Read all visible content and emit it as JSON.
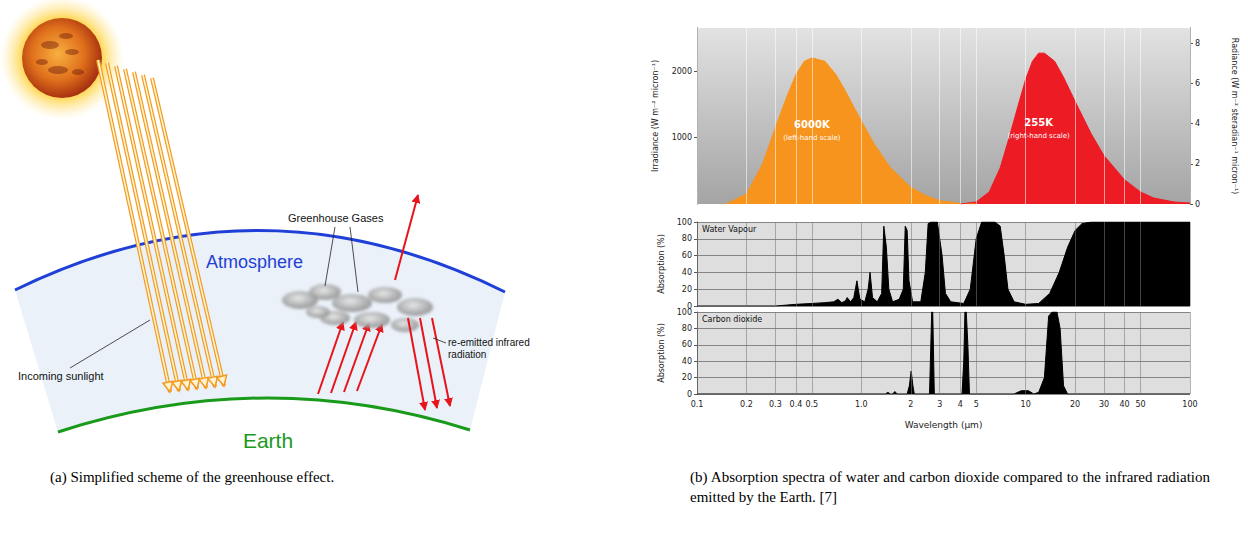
{
  "figure": {
    "panel_a": {
      "caption": "(a) Simplified scheme of the greenhouse effect.",
      "labels": {
        "greenhouse_gases": "Greenhouse Gases",
        "atmosphere": "Atmosphere",
        "incoming": "Incoming sunlight",
        "reemitted": "re-emitted infrared radiation",
        "earth": "Earth"
      }
    },
    "panel_b": {
      "caption": "(b) Absorption spectra of water and carbon dioxide compared to the infrared radiation emitted by the Earth. [7]"
    }
  },
  "chart_data": [
    {
      "type": "area",
      "log": "x",
      "xlim": [
        0.1,
        100
      ],
      "xticks": [
        0.1,
        0.2,
        0.3,
        0.4,
        0.5,
        {
          "value": 1,
          "label": "1.0"
        },
        2,
        3,
        4,
        5,
        10,
        20,
        30,
        40,
        50,
        100
      ],
      "tick_labels": "y",
      "grid": "x",
      "y_label": "Irradiance (W m⁻² micron⁻¹)",
      "ylim": [
        0,
        2650
      ],
      "yticks": [
        1000,
        2000
      ],
      "y2_label": "Radiance (W m⁻² steradian⁻¹ micron⁻¹)",
      "y2lim": [
        0,
        8.75
      ],
      "y2ticks": [
        0,
        2,
        4,
        6,
        8
      ],
      "series": [
        {
          "name": "6000K",
          "note": "(left-hand scale)",
          "color": "#f7941d",
          "x": [
            0.15,
            0.2,
            0.25,
            0.3,
            0.35,
            0.4,
            0.45,
            0.5,
            0.6,
            0.7,
            0.8,
            1.0,
            1.2,
            1.5,
            2,
            2.5,
            3,
            4,
            5
          ],
          "values": [
            0,
            150,
            600,
            1150,
            1600,
            1950,
            2150,
            2200,
            2150,
            1950,
            1700,
            1250,
            900,
            550,
            250,
            120,
            50,
            10,
            0
          ]
        },
        {
          "name": "255K",
          "note": "(right-hand scale)",
          "color": "#ed1c24",
          "axis": "y2",
          "x": [
            4,
            5,
            6,
            7,
            8,
            9,
            10,
            11,
            12,
            13,
            15,
            17,
            20,
            25,
            30,
            40,
            50,
            60,
            80,
            100
          ],
          "values": [
            0,
            0.1,
            0.6,
            1.8,
            3.4,
            4.9,
            6.2,
            7.1,
            7.5,
            7.5,
            7.1,
            6.3,
            5.1,
            3.5,
            2.4,
            1.2,
            0.6,
            0.3,
            0.1,
            0.05
          ]
        }
      ]
    },
    {
      "type": "area",
      "title": "Water Vapour",
      "log": "x",
      "xlim": [
        0.1,
        100
      ],
      "xticks": [
        0.1,
        0.2,
        0.3,
        0.4,
        0.5,
        {
          "value": 1,
          "label": "1.0"
        },
        2,
        3,
        4,
        5,
        10,
        20,
        30,
        40,
        50,
        100
      ],
      "tick_labels": "y",
      "grid": true,
      "y_label": "Absorption (%)",
      "ylim": [
        0,
        100
      ],
      "yticks": [
        0,
        20,
        40,
        60,
        80,
        100
      ],
      "color": "#000000",
      "x": [
        0.1,
        0.3,
        0.4,
        0.5,
        0.6,
        0.68,
        0.72,
        0.76,
        0.8,
        0.82,
        0.86,
        0.9,
        0.94,
        0.98,
        1.05,
        1.1,
        1.13,
        1.17,
        1.25,
        1.33,
        1.37,
        1.42,
        1.47,
        1.55,
        1.7,
        1.8,
        1.85,
        1.9,
        1.95,
        2.05,
        2.3,
        2.45,
        2.55,
        2.65,
        2.9,
        3.1,
        3.25,
        3.5,
        4.2,
        4.6,
        5.0,
        5.4,
        5.7,
        6.5,
        7.0,
        7.4,
        7.8,
        8.5,
        10,
        12,
        14,
        16,
        18,
        20,
        22,
        25,
        30,
        50,
        100
      ],
      "values": [
        0,
        0,
        2,
        3,
        4,
        5,
        8,
        4,
        6,
        10,
        5,
        10,
        30,
        8,
        5,
        20,
        40,
        10,
        5,
        15,
        95,
        70,
        20,
        5,
        8,
        20,
        95,
        90,
        30,
        5,
        5,
        40,
        98,
        100,
        100,
        60,
        15,
        5,
        3,
        20,
        80,
        100,
        100,
        100,
        95,
        60,
        20,
        5,
        2,
        3,
        15,
        40,
        70,
        90,
        98,
        100,
        100,
        100,
        100
      ]
    },
    {
      "type": "area",
      "title": "Carbon dioxide",
      "log": "x",
      "xlim": [
        0.1,
        100
      ],
      "xticks": [
        0.1,
        0.2,
        0.3,
        0.4,
        0.5,
        {
          "value": 1,
          "label": "1.0"
        },
        2,
        3,
        4,
        5,
        10,
        20,
        30,
        40,
        50,
        100
      ],
      "tick_labels": true,
      "grid": true,
      "x_label": "Wavelength (µm)",
      "y_label": "Absorption (%)",
      "ylim": [
        0,
        100
      ],
      "yticks": [
        0,
        20,
        40,
        60,
        80,
        100
      ],
      "color": "#000000",
      "x": [
        0.1,
        1.4,
        1.45,
        1.5,
        1.55,
        1.6,
        1.65,
        1.9,
        1.96,
        2.01,
        2.06,
        2.1,
        2.6,
        2.68,
        2.72,
        2.78,
        4.1,
        4.2,
        4.27,
        4.35,
        4.45,
        4.55,
        8.5,
        9.4,
        10.4,
        11.2,
        12,
        13,
        13.8,
        14.5,
        15.5,
        16.2,
        17,
        18,
        100
      ],
      "values": [
        0,
        0,
        2,
        0,
        0,
        3,
        0,
        0,
        10,
        28,
        10,
        0,
        0,
        100,
        100,
        0,
        0,
        40,
        100,
        100,
        60,
        0,
        0,
        4,
        4,
        0,
        2,
        20,
        95,
        100,
        100,
        80,
        10,
        0,
        0
      ]
    }
  ]
}
